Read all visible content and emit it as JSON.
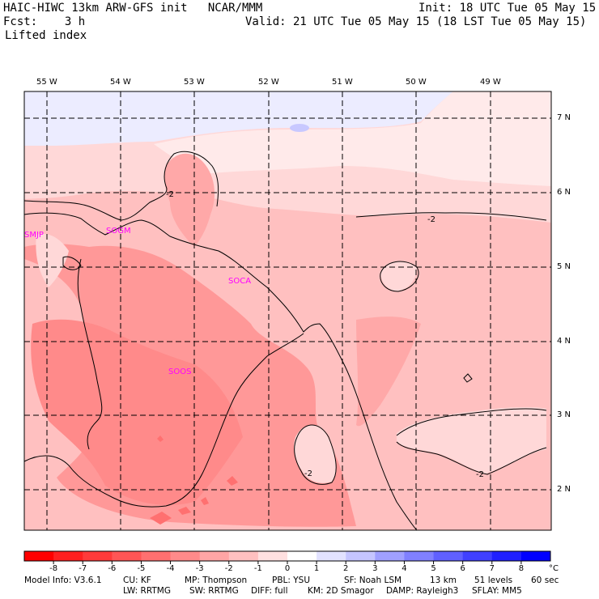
{
  "header": {
    "title": "HAIC-HIWC 13km ARW-GFS init   NCAR/MMM",
    "init": "Init: 18 UTC Tue 05 May 15",
    "fcst": "Fcst:    3 h",
    "valid": "Valid: 21 UTC Tue 05 May 15 (18 LST Tue 05 May 15)",
    "field": "Lifted index"
  },
  "lon_labels": [
    "55 W",
    "54 W",
    "53 W",
    "52 W",
    "51 W",
    "50 W",
    "49 W"
  ],
  "lat_labels": [
    "7 N",
    "6 N",
    "5 N",
    "4 N",
    "3 N",
    "2 N"
  ],
  "stations": [
    "SMJP",
    "SOGM",
    "SOCA",
    "SOOS"
  ],
  "contour_labels": [
    "-2",
    "-2",
    "-2",
    "-2"
  ],
  "colorbar": {
    "ticks": [
      "-8",
      "-7",
      "-6",
      "-5",
      "-4",
      "-3",
      "-2",
      "-1",
      "0",
      "1",
      "2",
      "3",
      "4",
      "5",
      "6",
      "7",
      "8"
    ],
    "unit": "°C",
    "colors": [
      "#ff0000",
      "#ff2020",
      "#ff3a3a",
      "#ff5555",
      "#ff7070",
      "#ff8a8a",
      "#ffa5a5",
      "#ffc0c0",
      "#ffe0e0",
      "#ffffff",
      "#e2e2ff",
      "#c5c5ff",
      "#a0a0ff",
      "#8080ff",
      "#6060ff",
      "#4040ff",
      "#2020ff",
      "#0000ff"
    ]
  },
  "field_colors": {
    "neg_4_5": "#ff8a8a",
    "neg_3_4": "#ffa5a5",
    "neg_2_3": "#ffc0c0",
    "neg_1_2": "#ffd5d5",
    "neg_0_1": "#ffe6e6",
    "pos_0_1": "#e8e8ff",
    "pos_1_2": "#c8c8ff"
  },
  "footer": {
    "line1": [
      "Model Info: V3.6.1",
      "CU: KF",
      "MP: Thompson",
      "PBL: YSU",
      "SF: Noah LSM",
      "13 km",
      "51 levels",
      "60 sec"
    ],
    "line2": [
      "LW: RRTMG",
      "SW: RRTMG",
      "DIFF: full",
      "KM: 2D Smagor",
      "DAMP: Rayleigh3",
      "SFLAY: MM5"
    ]
  }
}
